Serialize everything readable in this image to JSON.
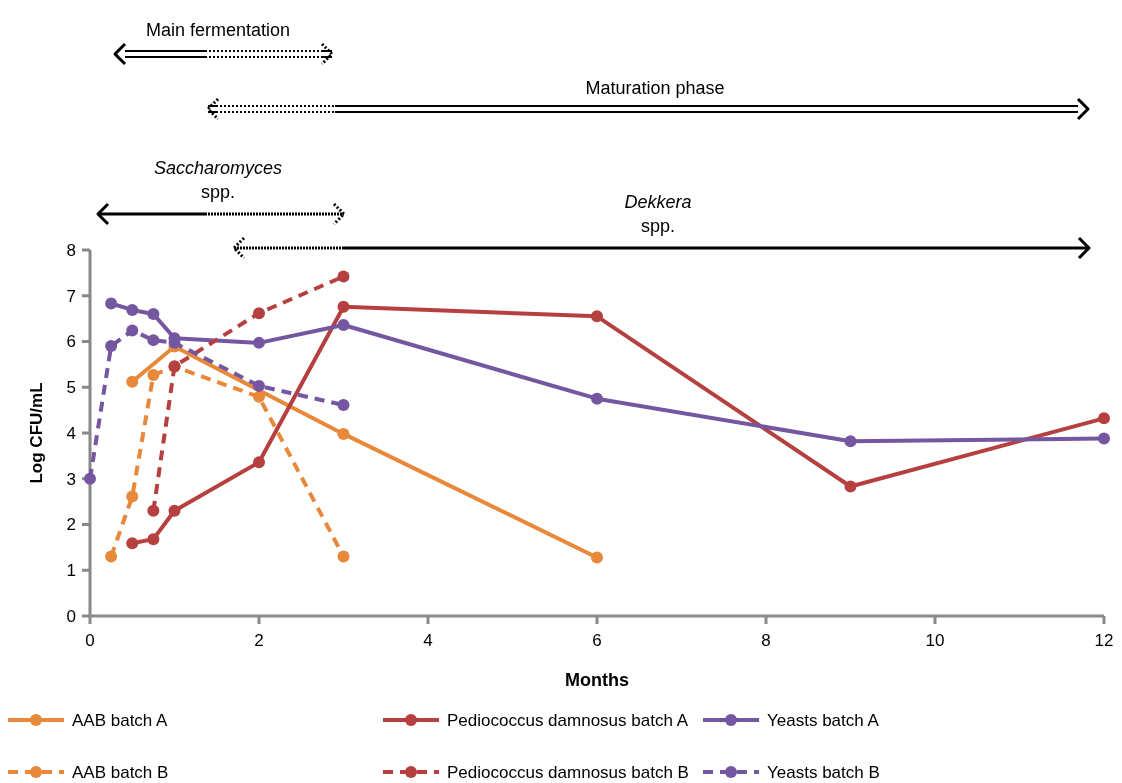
{
  "chart_data": {
    "type": "line",
    "xlabel": "Months",
    "ylabel": "Log CFU/mL",
    "xlim": [
      0,
      12
    ],
    "xticks": [
      0,
      2,
      4,
      6,
      8,
      10,
      12
    ],
    "ylim": [
      0,
      8
    ],
    "yticks": [
      0,
      1,
      2,
      3,
      4,
      5,
      6,
      7,
      8
    ],
    "marker": "circle",
    "legend": "bottom",
    "grid": false,
    "annotations": [
      "Main fermentation",
      "Maturation phase",
      "Saccharomyces spp.",
      "Dekkera spp."
    ],
    "series": [
      {
        "name": "AAB batch A",
        "color": "#e8883a",
        "line_style": "solid",
        "x": [
          0.5,
          1,
          3,
          6
        ],
        "values": [
          5.12,
          5.89,
          3.98,
          1.28
        ]
      },
      {
        "name": "Pediococcus damnosus batch A",
        "color": "#b5403f",
        "line_style": "solid",
        "x": [
          0.5,
          0.75,
          1,
          2,
          3,
          6,
          9,
          12
        ],
        "values": [
          1.59,
          1.68,
          2.3,
          3.36,
          6.76,
          6.55,
          2.83,
          4.32
        ]
      },
      {
        "name": "Yeasts batch A",
        "color": "#7457a0",
        "line_style": "solid",
        "x": [
          0.25,
          0.5,
          0.75,
          1,
          2,
          3,
          6,
          9,
          12
        ],
        "values": [
          6.83,
          6.69,
          6.6,
          6.07,
          5.97,
          6.36,
          4.75,
          3.82,
          3.88
        ]
      },
      {
        "name": "AAB batch B",
        "color": "#e8883a",
        "line_style": "dashed",
        "x": [
          0.25,
          0.5,
          0.75,
          1,
          2,
          3
        ],
        "values": [
          1.3,
          2.61,
          5.27,
          5.45,
          4.79,
          1.3
        ]
      },
      {
        "name": "Pediococcus damnosus batch B",
        "color": "#b5403f",
        "line_style": "dashed",
        "x": [
          0.75,
          1,
          2,
          3
        ],
        "values": [
          2.3,
          5.46,
          6.62,
          7.42
        ]
      },
      {
        "name": "Yeasts batch B",
        "color": "#7457a0",
        "line_style": "dashed",
        "x": [
          0,
          0.25,
          0.5,
          0.75,
          1,
          2,
          3
        ],
        "values": [
          3.0,
          5.9,
          6.24,
          6.03,
          5.97,
          5.03,
          4.61
        ]
      }
    ]
  }
}
